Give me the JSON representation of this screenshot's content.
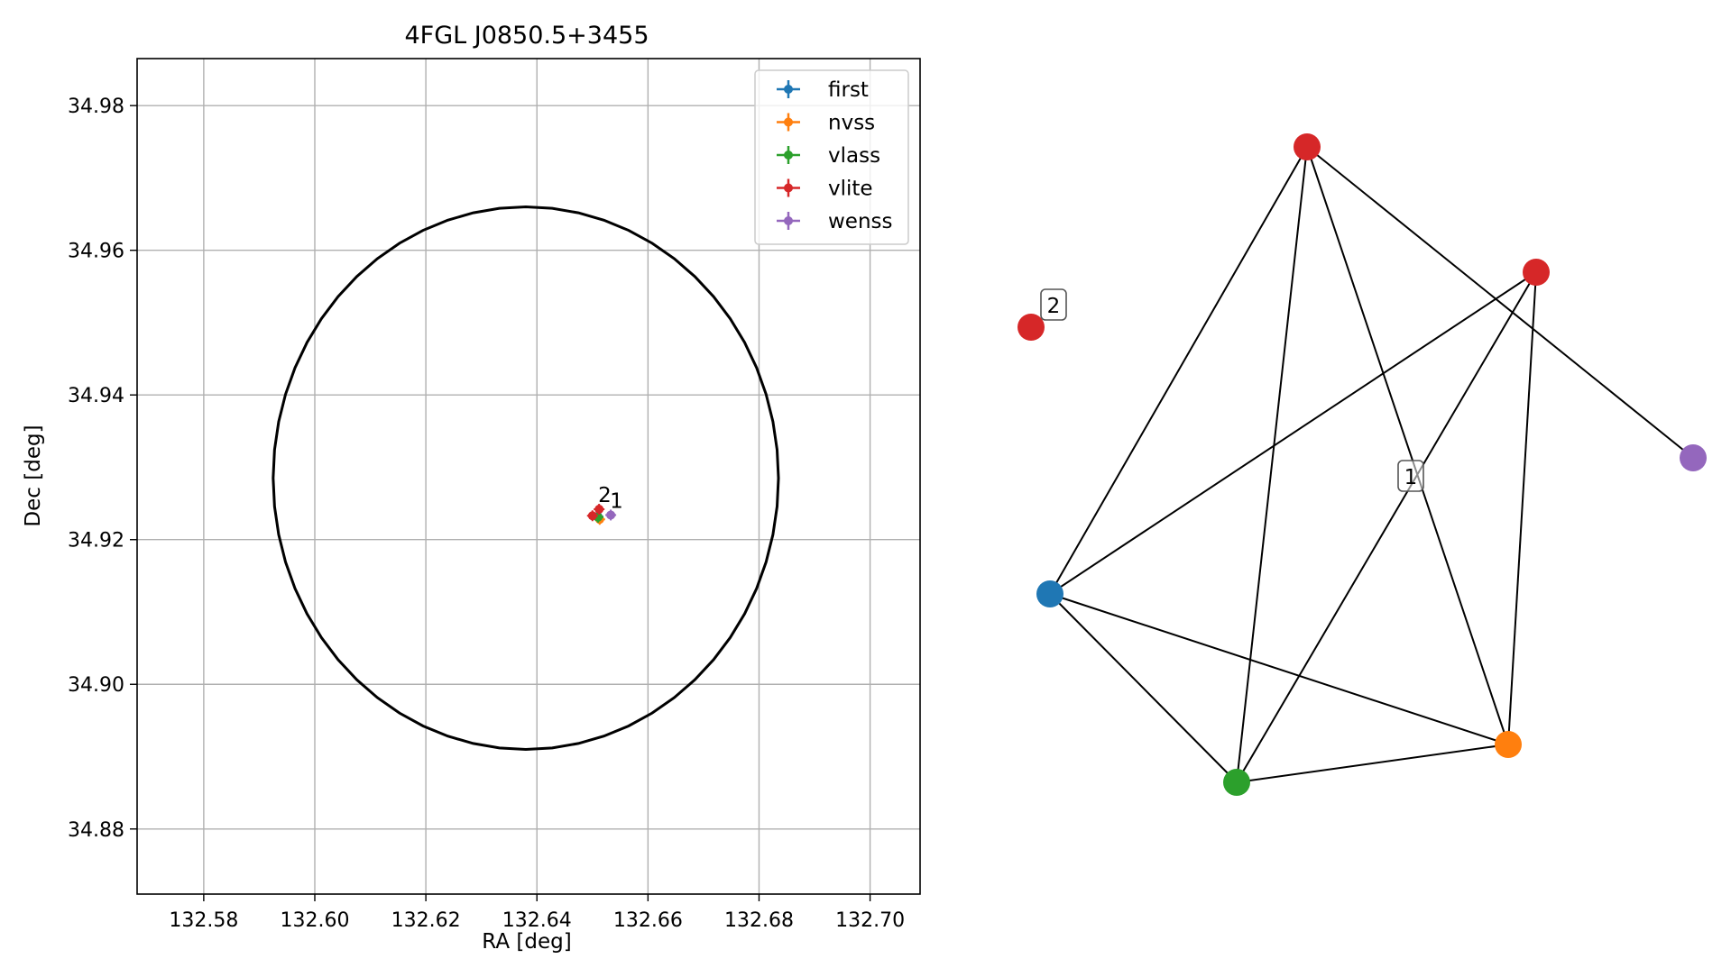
{
  "chart_data": [
    {
      "type": "scatter",
      "title": "4FGL J0850.5+3455",
      "xlabel": "RA [deg]",
      "ylabel": "Dec [deg]",
      "xlim": [
        132.568,
        132.709
      ],
      "ylim": [
        34.871,
        34.9865
      ],
      "xticks": [
        132.58,
        132.6,
        132.62,
        132.64,
        132.66,
        132.68,
        132.7
      ],
      "xtick_labels": [
        "132.58",
        "132.60",
        "132.62",
        "132.64",
        "132.66",
        "132.68",
        "132.70"
      ],
      "yticks": [
        34.88,
        34.9,
        34.92,
        34.94,
        34.96,
        34.98
      ],
      "ytick_labels": [
        "34.88",
        "34.90",
        "34.92",
        "34.94",
        "34.96",
        "34.98"
      ],
      "grid": true,
      "legend_position": "top-right",
      "error_ellipse": {
        "center_ra": 132.638,
        "center_dec": 34.9285,
        "semi_axis_ra": 0.0455,
        "semi_axis_dec": 0.0375
      },
      "series": [
        {
          "name": "first",
          "color": "#1f77b4",
          "points": [
            {
              "ra": 132.651,
              "dec": 34.9232
            }
          ]
        },
        {
          "name": "nvss",
          "color": "#ff7f0e",
          "points": [
            {
              "ra": 132.6513,
              "dec": 34.9228
            }
          ]
        },
        {
          "name": "vlass",
          "color": "#2ca02c",
          "points": [
            {
              "ra": 132.651,
              "dec": 34.9231
            }
          ]
        },
        {
          "name": "vlite",
          "color": "#d62728",
          "points": [
            {
              "ra": 132.65,
              "dec": 34.9233
            },
            {
              "ra": 132.6512,
              "dec": 34.9242
            }
          ]
        },
        {
          "name": "wenss",
          "color": "#9467bd",
          "points": [
            {
              "ra": 132.6533,
              "dec": 34.9234
            }
          ]
        }
      ],
      "group_labels": [
        {
          "text": "2",
          "ra": 132.6512,
          "dec": 34.9242
        },
        {
          "text": "1",
          "ra": 132.6533,
          "dec": 34.9234
        }
      ]
    },
    {
      "type": "network",
      "nodes": [
        {
          "id": "vlite_a",
          "color": "#d62728"
        },
        {
          "id": "vlite_b",
          "color": "#d62728"
        },
        {
          "id": "vlite_c",
          "color": "#d62728"
        },
        {
          "id": "wenss",
          "color": "#9467bd"
        },
        {
          "id": "first",
          "color": "#1f77b4"
        },
        {
          "id": "vlass",
          "color": "#2ca02c"
        },
        {
          "id": "nvss",
          "color": "#ff7f0e"
        }
      ],
      "edges": [
        [
          "vlite_a",
          "first"
        ],
        [
          "vlite_a",
          "vlass"
        ],
        [
          "vlite_a",
          "nvss"
        ],
        [
          "vlite_a",
          "wenss"
        ],
        [
          "vlite_b",
          "first"
        ],
        [
          "vlite_b",
          "vlass"
        ],
        [
          "vlite_b",
          "nvss"
        ],
        [
          "first",
          "vlass"
        ],
        [
          "first",
          "nvss"
        ],
        [
          "vlass",
          "nvss"
        ]
      ],
      "group_labels": [
        "1",
        "2"
      ]
    }
  ]
}
